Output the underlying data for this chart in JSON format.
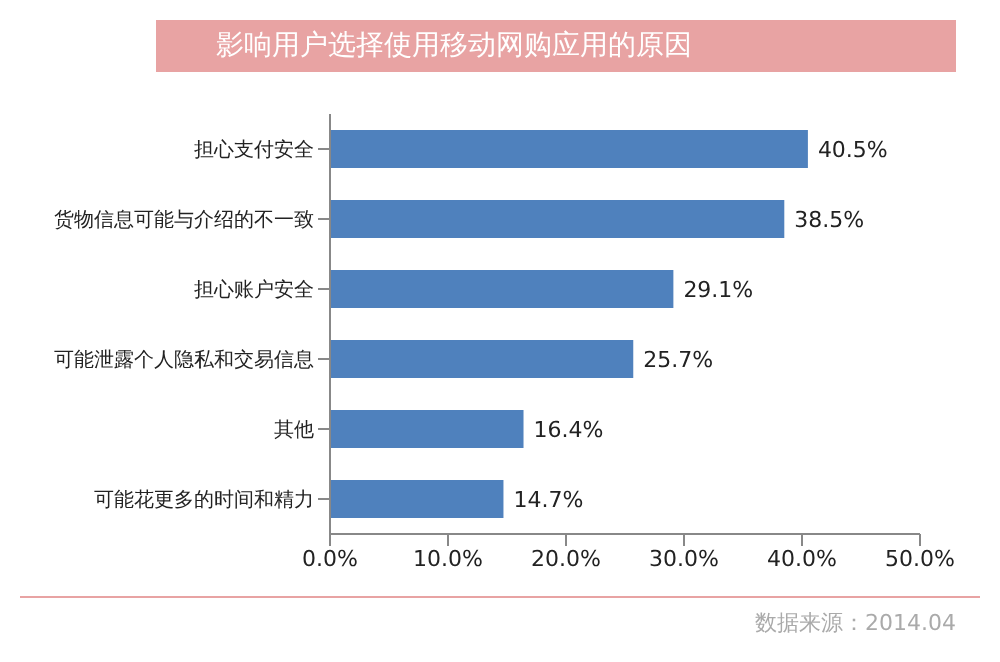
{
  "chart_data": {
    "type": "bar",
    "orientation": "horizontal",
    "title": "影响用户选择使用移动网购应用的原因",
    "categories": [
      "担心支付安全",
      "货物信息可能与介绍的不一致",
      "担心账户安全",
      "可能泄露个人隐私和交易信息",
      "其他",
      "可能花更多的时间和精力"
    ],
    "values": [
      40.5,
      38.5,
      29.1,
      25.7,
      16.4,
      14.7
    ],
    "value_labels": [
      "40.5%",
      "38.5%",
      "29.1%",
      "25.7%",
      "16.4%",
      "14.7%"
    ],
    "color": "#4f81bd",
    "xlim": [
      0,
      50
    ],
    "xticks": [
      {
        "value": 0,
        "label": "0.0%"
      },
      {
        "value": 10,
        "label": "10.0%"
      },
      {
        "value": 20,
        "label": "20.0%"
      },
      {
        "value": 30,
        "label": "30.0%"
      },
      {
        "value": 40,
        "label": "40.0%"
      },
      {
        "value": 50,
        "label": "50.0%"
      }
    ],
    "grid": false,
    "legend": false,
    "annotations": [
      "数据来源：2014.04"
    ]
  }
}
